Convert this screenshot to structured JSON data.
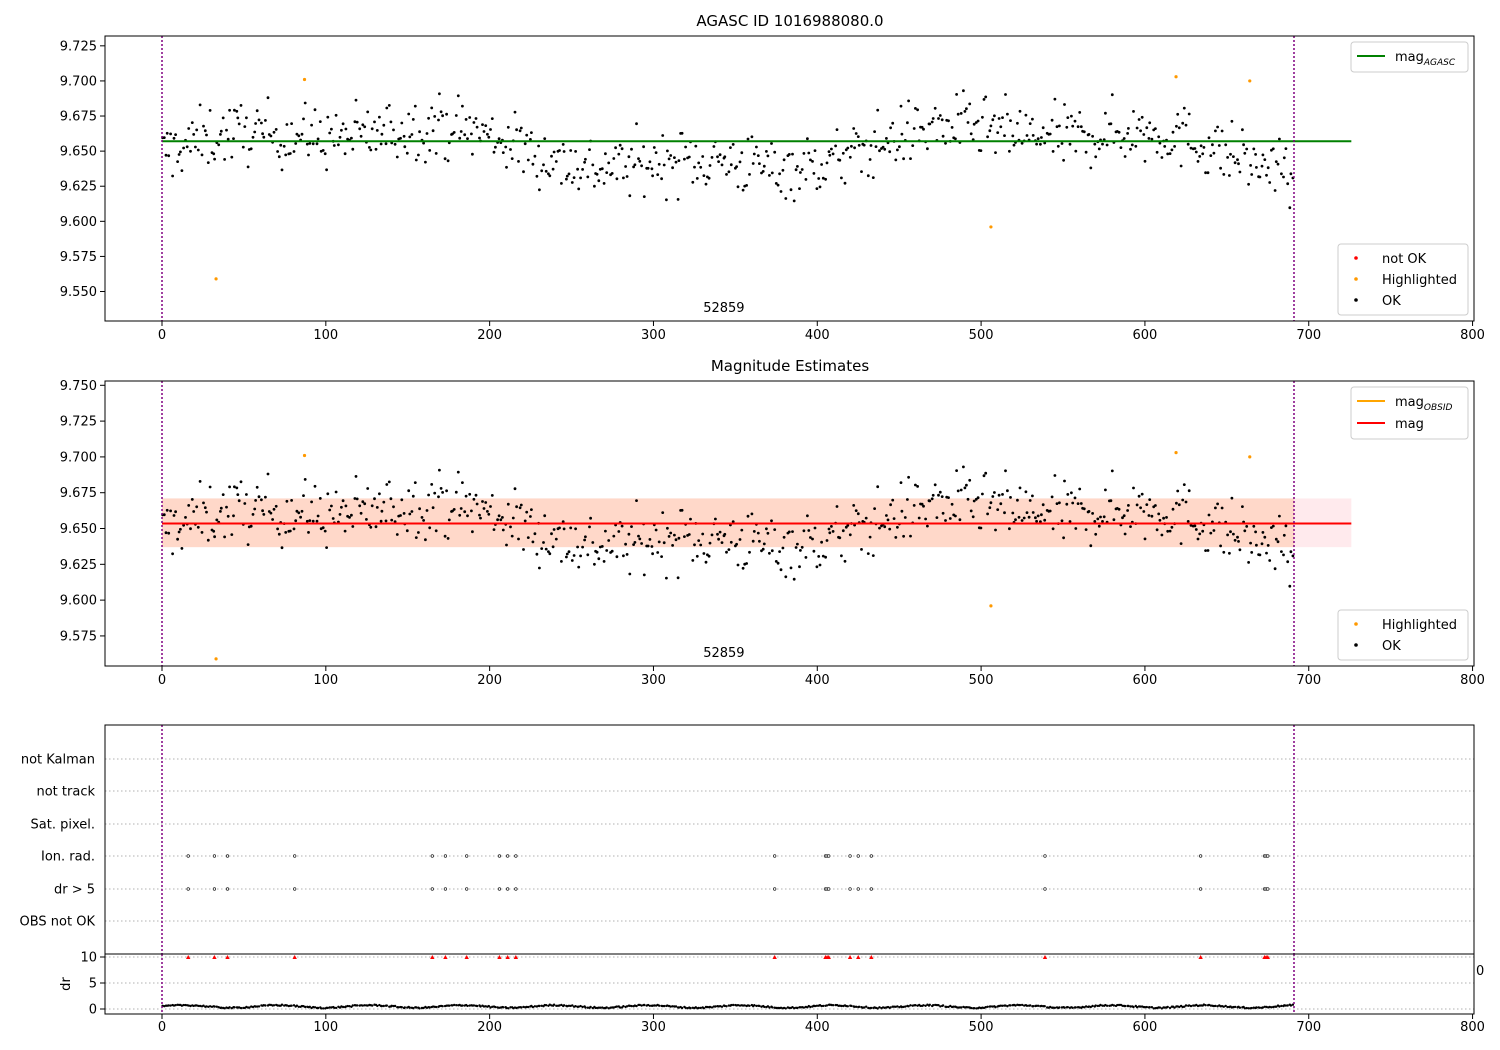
{
  "colors": {
    "ok": "#000000",
    "highlighted": "#ff9900",
    "not_ok": "#ff0000",
    "mag_agasc": "#008000",
    "mag_obsid": "#ffa500",
    "mag": "#ff0000",
    "band_obsid": "#ffd5c2",
    "band_mag": "#ffe6ea",
    "obs_boundary": "#800080",
    "grid": "#b0b0b0"
  },
  "chart_data": [
    {
      "type": "scatter",
      "title": "AGASC ID 1016988080.0",
      "xlim": [
        -35,
        802
      ],
      "ylim": [
        9.529,
        9.732
      ],
      "xticks": [
        0,
        100,
        200,
        300,
        400,
        500,
        600,
        700,
        800
      ],
      "yticks": [
        "9.550",
        "9.575",
        "9.600",
        "9.625",
        "9.650",
        "9.675",
        "9.700",
        "9.725"
      ],
      "obs_label": "52859",
      "obs_label_at": 343,
      "obs_boundaries": [
        0,
        691
      ],
      "lines": [
        {
          "name": "mag_AGASC",
          "y": 9.657,
          "x": [
            0,
            726
          ],
          "color": "mag_agasc"
        }
      ],
      "legend_top": {
        "position": "upper right",
        "entries": [
          {
            "base": "mag",
            "sub": "AGASC",
            "symbol": "line",
            "color": "mag_agasc"
          }
        ]
      },
      "legend_bottom": {
        "position": "lower right",
        "entries": [
          {
            "label": "not OK",
            "symbol": "dot",
            "color": "not_ok"
          },
          {
            "label": "Highlighted",
            "symbol": "dot",
            "color": "highlighted"
          },
          {
            "label": "OK",
            "symbol": "dot",
            "color": "ok"
          }
        ]
      },
      "series": [
        {
          "name": "OK",
          "style": "generated",
          "n": 690,
          "x_range": [
            0,
            691
          ],
          "mean": 9.652,
          "color": "ok"
        },
        {
          "name": "Highlighted",
          "color": "highlighted",
          "points": [
            [
              33,
              9.559
            ],
            [
              87,
              9.701
            ],
            [
              506,
              9.596
            ],
            [
              619,
              9.703
            ],
            [
              664,
              9.7
            ]
          ]
        },
        {
          "name": "not OK",
          "color": "not_ok",
          "points": []
        }
      ]
    },
    {
      "type": "scatter",
      "title": "Magnitude Estimates",
      "xlim": [
        -35,
        802
      ],
      "ylim": [
        9.554,
        9.753
      ],
      "xticks": [
        0,
        100,
        200,
        300,
        400,
        500,
        600,
        700,
        800
      ],
      "yticks": [
        "9.575",
        "9.600",
        "9.625",
        "9.650",
        "9.675",
        "9.700",
        "9.725",
        "9.750"
      ],
      "obs_label": "52859",
      "obs_label_at": 343,
      "obs_boundaries": [
        0,
        691
      ],
      "lines": [
        {
          "name": "mag_OBSID",
          "y": 9.6535,
          "x": [
            0,
            691
          ],
          "color": "mag_obsid"
        },
        {
          "name": "mag",
          "y": 9.6535,
          "x": [
            0,
            726
          ],
          "color": "mag"
        }
      ],
      "bands": [
        {
          "name": "mag_OBSID band",
          "y": [
            9.637,
            9.671
          ],
          "x": [
            0,
            691
          ],
          "color": "band_obsid"
        },
        {
          "name": "mag band",
          "y": [
            9.637,
            9.671
          ],
          "x": [
            0,
            726
          ],
          "color": "band_mag"
        }
      ],
      "legend_top": {
        "position": "upper right",
        "entries": [
          {
            "base": "mag",
            "sub": "OBSID",
            "symbol": "line",
            "color": "mag_obsid"
          },
          {
            "base": "mag",
            "sub": "",
            "symbol": "line",
            "color": "mag"
          }
        ]
      },
      "legend_bottom": {
        "position": "lower right",
        "entries": [
          {
            "label": "Highlighted",
            "symbol": "dot",
            "color": "highlighted"
          },
          {
            "label": "OK",
            "symbol": "dot",
            "color": "ok"
          }
        ]
      },
      "series": [
        {
          "name": "OK",
          "style": "generated",
          "n": 690,
          "x_range": [
            0,
            691
          ],
          "mean": 9.652,
          "color": "ok"
        },
        {
          "name": "Highlighted",
          "color": "highlighted",
          "points": [
            [
              33,
              9.559
            ],
            [
              87,
              9.701
            ],
            [
              506,
              9.596
            ],
            [
              619,
              9.703
            ],
            [
              664,
              9.7
            ]
          ]
        }
      ]
    },
    {
      "type": "scatter",
      "title": "",
      "xlim": [
        -35,
        802
      ],
      "xticks": [
        0,
        100,
        200,
        300,
        400,
        500,
        600,
        700,
        800
      ],
      "obs_boundaries": [
        0,
        691
      ],
      "flag_rows": [
        "not Kalman",
        "not track",
        "Sat. pixel.",
        "Ion. rad.",
        "dr > 5",
        "OBS not OK"
      ],
      "flag_points": {
        "Ion. rad.": [
          16,
          32,
          40,
          81,
          165,
          173,
          186,
          206,
          211,
          216,
          374,
          405,
          406,
          407,
          420,
          425,
          433,
          539,
          634,
          673,
          674,
          675
        ],
        "dr > 5": [
          16,
          32,
          40,
          81,
          165,
          173,
          186,
          206,
          211,
          216,
          374,
          405,
          406,
          407,
          420,
          425,
          433,
          539,
          634,
          673,
          674,
          675
        ]
      },
      "dr": {
        "ylabel": "dr",
        "ylim": [
          0,
          10
        ],
        "yticks": [
          "0",
          "5",
          "10"
        ],
        "cap": 10,
        "capped_x": [
          16,
          32,
          40,
          81,
          165,
          173,
          186,
          206,
          211,
          216,
          374,
          405,
          406,
          407,
          420,
          425,
          433,
          539,
          634,
          673,
          674,
          675
        ],
        "series": {
          "name": "dr",
          "style": "generated",
          "n": 690,
          "x_range": [
            0,
            691
          ],
          "mean": 0.4,
          "color": "ok"
        },
        "clipped_tick": "0"
      }
    }
  ]
}
